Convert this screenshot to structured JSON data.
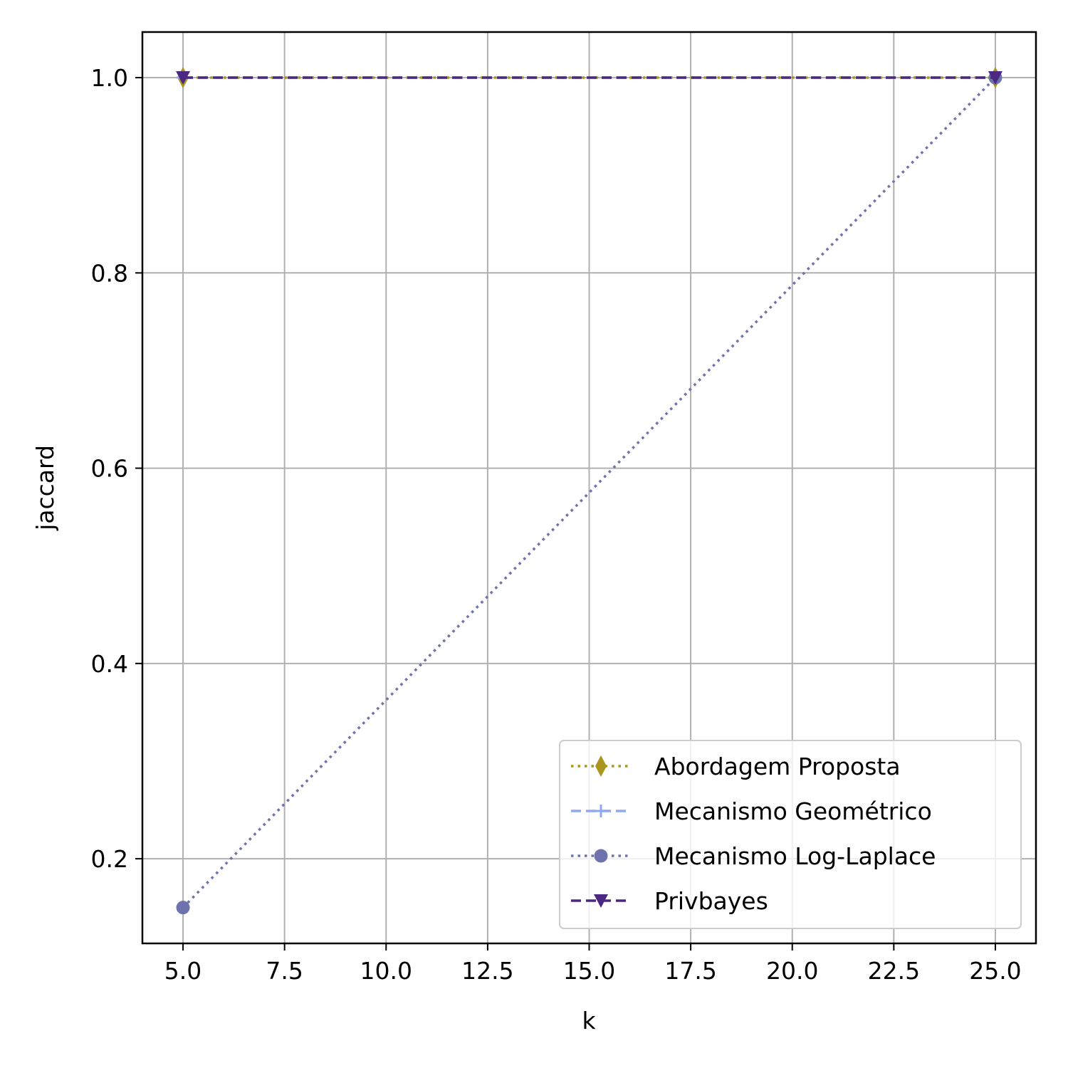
{
  "chart_data": {
    "type": "line",
    "title": "",
    "xlabel": "k",
    "ylabel": "jaccard",
    "xlim": [
      4.0,
      26.0
    ],
    "ylim": [
      0.1133,
      1.0467
    ],
    "x_ticks": [
      5.0,
      7.5,
      10.0,
      12.5,
      15.0,
      17.5,
      20.0,
      22.5,
      25.0
    ],
    "x_tick_labels": [
      "5.0",
      "7.5",
      "10.0",
      "12.5",
      "15.0",
      "17.5",
      "20.0",
      "22.5",
      "25.0"
    ],
    "y_ticks": [
      0.2,
      0.4,
      0.6,
      0.8,
      1.0
    ],
    "y_tick_labels": [
      "0.2",
      "0.4",
      "0.6",
      "0.8",
      "1.0"
    ],
    "grid": true,
    "legend_position": "lower-right",
    "series": [
      {
        "name": "Abordagem Proposta",
        "x": [
          5,
          25
        ],
        "y": [
          1.0,
          1.0
        ],
        "color": "#a8961d",
        "linestyle": "dotted",
        "marker": "thin-diamond"
      },
      {
        "name": "Mecanismo Geométrico",
        "x": [
          5,
          25
        ],
        "y": [
          1.0,
          1.0
        ],
        "color": "#8fa8f5",
        "linestyle": "dashed",
        "marker": "plus"
      },
      {
        "name": "Mecanismo Log-Laplace",
        "x": [
          5,
          25
        ],
        "y": [
          0.15,
          1.0
        ],
        "color": "#6e73ae",
        "linestyle": "dotted",
        "marker": "circle"
      },
      {
        "name": "Privbayes",
        "x": [
          5,
          25
        ],
        "y": [
          1.0,
          1.0
        ],
        "color": "#4b2882",
        "linestyle": "dashed",
        "marker": "triangle-down"
      }
    ]
  }
}
